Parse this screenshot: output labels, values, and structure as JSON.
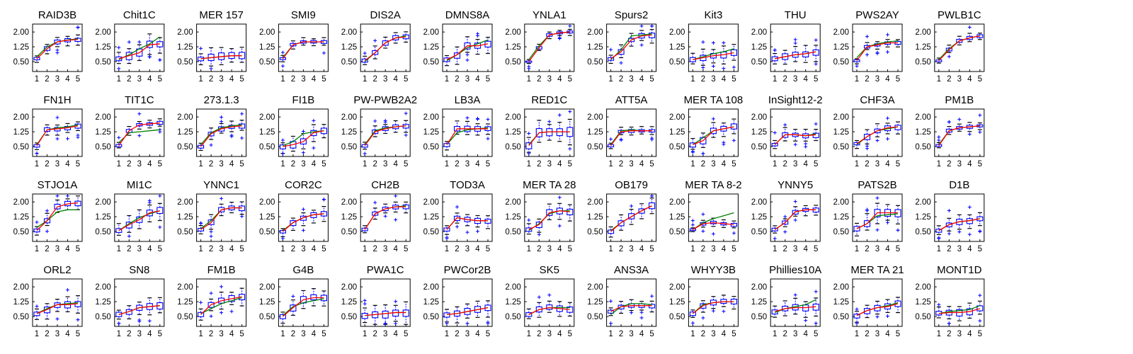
{
  "figure": {
    "type": "boxplot-grid",
    "colors": {
      "box": "#0000ff",
      "median": "#ff0000",
      "fit": "#008000",
      "whisker": "#0000ff",
      "cap": "#000000",
      "outlier": "#0000ff",
      "axes": "#000000"
    }
  },
  "chart_data": {
    "type": "boxplot",
    "grid": {
      "rows": 4,
      "cols": 12
    },
    "x_ticks": [
      "1",
      "2",
      "3",
      "4",
      "5"
    ],
    "y_ticks": [
      "0.50",
      "1.25",
      "2.00"
    ],
    "ylim": [
      0,
      2.4
    ],
    "grid_lines": false,
    "panels": [
      {
        "title": "RAID3B",
        "medians": [
          0.65,
          1.15,
          1.5,
          1.58,
          1.62
        ],
        "fit": [
          0.75,
          1.25,
          1.5,
          1.6,
          1.65
        ],
        "spread": 0.2
      },
      {
        "title": "Chit1C",
        "medians": [
          0.65,
          0.8,
          0.95,
          1.35,
          1.4
        ],
        "fit": [
          0.6,
          0.85,
          1.15,
          1.4,
          1.75
        ],
        "spread": 0.35
      },
      {
        "title": "MER 157",
        "medians": [
          0.65,
          0.7,
          0.75,
          0.8,
          0.8
        ],
        "fit": [
          0.65,
          0.7,
          0.75,
          0.8,
          0.8
        ],
        "spread": 0.35
      },
      {
        "title": "SMI9",
        "medians": [
          0.65,
          1.35,
          1.5,
          1.5,
          1.5
        ],
        "fit": [
          0.7,
          1.35,
          1.5,
          1.5,
          1.5
        ],
        "spread": 0.15
      },
      {
        "title": "DIS2A",
        "medians": [
          0.55,
          0.95,
          1.45,
          1.7,
          1.75
        ],
        "fit": [
          0.5,
          0.95,
          1.45,
          1.7,
          1.8
        ],
        "spread": 0.25
      },
      {
        "title": "DMNS8A",
        "medians": [
          0.6,
          0.85,
          1.3,
          1.3,
          1.4
        ],
        "fit": [
          0.55,
          0.85,
          1.2,
          1.4,
          1.6
        ],
        "spread": 0.3
      },
      {
        "title": "YNLA1",
        "medians": [
          0.5,
          1.2,
          1.85,
          1.95,
          2.0
        ],
        "fit": [
          0.6,
          1.3,
          1.85,
          1.95,
          2.0
        ],
        "spread": 0.12
      },
      {
        "title": "Spurs2",
        "medians": [
          0.65,
          1.0,
          1.6,
          1.8,
          1.85
        ],
        "fit": [
          0.6,
          1.1,
          1.8,
          1.85,
          1.9
        ],
        "spread": 0.25
      },
      {
        "title": "Kit3",
        "medians": [
          0.6,
          0.7,
          0.8,
          0.85,
          0.95
        ],
        "fit": [
          0.6,
          0.75,
          0.9,
          1.0,
          1.15
        ],
        "spread": 0.3
      },
      {
        "title": "THU",
        "medians": [
          0.65,
          0.75,
          0.85,
          0.9,
          1.0
        ],
        "fit": [
          0.65,
          0.75,
          0.85,
          0.9,
          1.0
        ],
        "spread": 0.3
      },
      {
        "title": "PWS2AY",
        "medians": [
          0.55,
          1.25,
          1.35,
          1.45,
          1.45
        ],
        "fit": [
          0.7,
          1.25,
          1.4,
          1.5,
          1.55
        ],
        "spread": 0.15
      },
      {
        "title": "PWLB1C",
        "medians": [
          0.55,
          1.1,
          1.55,
          1.7,
          1.8
        ],
        "fit": [
          0.6,
          1.15,
          1.55,
          1.7,
          1.8
        ],
        "spread": 0.15
      },
      {
        "title": "FN1H",
        "medians": [
          0.55,
          1.35,
          1.4,
          1.45,
          1.55
        ],
        "fit": [
          0.6,
          1.35,
          1.45,
          1.5,
          1.6
        ],
        "spread": 0.2
      },
      {
        "title": "TIT1C",
        "medians": [
          0.55,
          1.3,
          1.6,
          1.65,
          1.7
        ],
        "fit": [
          0.7,
          1.2,
          1.25,
          1.3,
          1.35
        ],
        "spread": 0.15
      },
      {
        "title": "273.1.3",
        "medians": [
          0.5,
          1.15,
          1.4,
          1.5,
          1.55
        ],
        "fit": [
          0.6,
          1.2,
          1.45,
          1.55,
          1.6
        ],
        "spread": 0.2
      },
      {
        "title": "FI1B",
        "medians": [
          0.5,
          0.6,
          0.75,
          1.2,
          1.3
        ],
        "fit": [
          0.55,
          0.75,
          1.15,
          1.25,
          1.3
        ],
        "spread": 0.3
      },
      {
        "title": "PW-PWB2A2",
        "medians": [
          0.55,
          1.25,
          1.4,
          1.5,
          1.55
        ],
        "fit": [
          0.6,
          1.3,
          1.45,
          1.5,
          1.55
        ],
        "spread": 0.2
      },
      {
        "title": "LB3A",
        "medians": [
          0.6,
          1.4,
          1.4,
          1.4,
          1.4
        ],
        "fit": [
          0.6,
          1.2,
          1.35,
          1.4,
          1.45
        ],
        "spread": 0.25
      },
      {
        "title": "RED1C",
        "medians": [
          0.55,
          1.2,
          1.25,
          1.25,
          1.25
        ],
        "fit": [
          0.6,
          1.2,
          1.25,
          1.25,
          1.25
        ],
        "spread": 0.4
      },
      {
        "title": "ATT5A",
        "medians": [
          0.55,
          1.25,
          1.3,
          1.3,
          1.3
        ],
        "fit": [
          0.6,
          1.3,
          1.35,
          1.3,
          1.3
        ],
        "spread": 0.15
      },
      {
        "title": "MER TA 108",
        "medians": [
          0.6,
          0.8,
          1.3,
          1.4,
          1.5
        ],
        "fit": [
          0.6,
          0.95,
          1.3,
          1.4,
          1.5
        ],
        "spread": 0.3
      },
      {
        "title": "InSight12-2",
        "medians": [
          0.6,
          1.1,
          1.1,
          1.05,
          1.1
        ],
        "fit": [
          0.6,
          1.1,
          1.1,
          1.05,
          1.15
        ],
        "spread": 0.25
      },
      {
        "title": "CHF3A",
        "medians": [
          0.65,
          1.0,
          1.3,
          1.45,
          1.5
        ],
        "fit": [
          0.6,
          1.0,
          1.3,
          1.4,
          1.5
        ],
        "spread": 0.25
      },
      {
        "title": "PM1B",
        "medians": [
          0.55,
          1.3,
          1.45,
          1.5,
          1.55
        ],
        "fit": [
          0.6,
          1.3,
          1.45,
          1.5,
          1.55
        ],
        "spread": 0.15
      },
      {
        "title": "STJO1A",
        "medians": [
          0.55,
          1.05,
          1.75,
          1.9,
          1.95
        ],
        "fit": [
          0.7,
          1.05,
          1.5,
          1.6,
          1.6
        ],
        "spread": 0.25
      },
      {
        "title": "MI1C",
        "medians": [
          0.55,
          0.85,
          1.1,
          1.45,
          1.55
        ],
        "fit": [
          0.55,
          0.9,
          1.2,
          1.4,
          1.55
        ],
        "spread": 0.35
      },
      {
        "title": "YNNC1",
        "medians": [
          0.6,
          0.95,
          1.6,
          1.7,
          1.7
        ],
        "fit": [
          0.65,
          1.05,
          1.6,
          1.7,
          1.7
        ],
        "spread": 0.25
      },
      {
        "title": "COR2C",
        "medians": [
          0.5,
          0.95,
          1.2,
          1.35,
          1.4
        ],
        "fit": [
          0.55,
          0.95,
          1.2,
          1.35,
          1.4
        ],
        "spread": 0.25
      },
      {
        "title": "CH2B",
        "medians": [
          0.6,
          1.4,
          1.65,
          1.75,
          1.75
        ],
        "fit": [
          0.6,
          1.4,
          1.65,
          1.75,
          1.8
        ],
        "spread": 0.2
      },
      {
        "title": "TOD3A",
        "medians": [
          0.6,
          1.2,
          1.1,
          1.05,
          1.05
        ],
        "fit": [
          0.6,
          1.2,
          1.1,
          1.05,
          1.05
        ],
        "spread": 0.25
      },
      {
        "title": "MER TA 28",
        "medians": [
          0.6,
          0.85,
          1.45,
          1.55,
          1.5
        ],
        "fit": [
          0.55,
          0.9,
          1.4,
          1.55,
          1.55
        ],
        "spread": 0.3
      },
      {
        "title": "OB179",
        "medians": [
          0.5,
          0.95,
          1.25,
          1.55,
          1.8
        ],
        "fit": [
          0.55,
          0.95,
          1.25,
          1.55,
          1.8
        ],
        "spread": 0.3
      },
      {
        "title": "MER TA 8-2",
        "medians": [
          0.6,
          0.9,
          0.95,
          0.9,
          0.85
        ],
        "fit": [
          0.6,
          0.95,
          1.15,
          1.3,
          1.45
        ],
        "spread": 0.15
      },
      {
        "title": "YNNY5",
        "medians": [
          0.6,
          0.95,
          1.5,
          1.6,
          1.6
        ],
        "fit": [
          0.6,
          0.95,
          1.5,
          1.6,
          1.6
        ],
        "spread": 0.2
      },
      {
        "title": "PATS2B",
        "medians": [
          0.65,
          0.9,
          1.45,
          1.45,
          1.45
        ],
        "fit": [
          0.65,
          0.9,
          1.3,
          1.35,
          1.4
        ],
        "spread": 0.35
      },
      {
        "title": "D1B",
        "medians": [
          0.55,
          0.85,
          1.0,
          1.05,
          1.15
        ],
        "fit": [
          0.55,
          0.85,
          1.0,
          1.05,
          1.15
        ],
        "spread": 0.25
      },
      {
        "title": "ORL2",
        "medians": [
          0.65,
          0.85,
          1.1,
          1.1,
          1.15
        ],
        "fit": [
          0.65,
          0.9,
          1.1,
          1.15,
          1.2
        ],
        "spread": 0.3
      },
      {
        "title": "SN8",
        "medians": [
          0.6,
          0.75,
          0.95,
          1.0,
          1.05
        ],
        "fit": [
          0.6,
          0.75,
          0.95,
          1.0,
          1.05
        ],
        "spread": 0.3
      },
      {
        "title": "FM1B",
        "medians": [
          0.6,
          1.1,
          1.3,
          1.4,
          1.5
        ],
        "fit": [
          0.65,
          0.9,
          1.15,
          1.3,
          1.45
        ],
        "spread": 0.3
      },
      {
        "title": "G4B",
        "medians": [
          0.5,
          0.95,
          1.35,
          1.45,
          1.45
        ],
        "fit": [
          0.55,
          1.0,
          1.2,
          1.3,
          1.4
        ],
        "spread": 0.3
      },
      {
        "title": "PWA1C",
        "medians": [
          0.55,
          0.6,
          0.65,
          0.7,
          0.7
        ],
        "fit": [
          0.55,
          0.6,
          0.65,
          0.7,
          0.7
        ],
        "spread": 0.4
      },
      {
        "title": "PWCor2B",
        "medians": [
          0.6,
          0.65,
          0.75,
          0.85,
          0.95
        ],
        "fit": [
          0.6,
          0.65,
          0.75,
          0.85,
          0.95
        ],
        "spread": 0.35
      },
      {
        "title": "SK5",
        "medians": [
          0.6,
          0.85,
          0.95,
          0.9,
          0.85
        ],
        "fit": [
          0.6,
          0.85,
          0.95,
          0.95,
          0.95
        ],
        "spread": 0.25
      },
      {
        "title": "ANS3A",
        "medians": [
          0.75,
          1.0,
          1.05,
          1.05,
          1.05
        ],
        "fit": [
          0.6,
          1.0,
          1.15,
          1.15,
          1.1
        ],
        "spread": 0.2
      },
      {
        "title": "WHYY3B",
        "medians": [
          0.65,
          1.05,
          1.2,
          1.25,
          1.25
        ],
        "fit": [
          0.65,
          1.1,
          1.2,
          1.25,
          1.25
        ],
        "spread": 0.25
      },
      {
        "title": "Phillies10A",
        "medians": [
          0.75,
          0.9,
          0.95,
          0.95,
          1.0
        ],
        "fit": [
          0.7,
          0.9,
          1.0,
          1.1,
          1.35
        ],
        "spread": 0.3
      },
      {
        "title": "MER TA 21",
        "medians": [
          0.55,
          0.8,
          0.95,
          1.0,
          1.15
        ],
        "fit": [
          0.55,
          0.8,
          0.95,
          1.05,
          1.2
        ],
        "spread": 0.3
      },
      {
        "title": "MONT1D",
        "medians": [
          0.65,
          0.7,
          0.7,
          0.75,
          0.9
        ],
        "fit": [
          0.65,
          0.75,
          0.8,
          0.85,
          1.05
        ],
        "spread": 0.3
      }
    ]
  }
}
